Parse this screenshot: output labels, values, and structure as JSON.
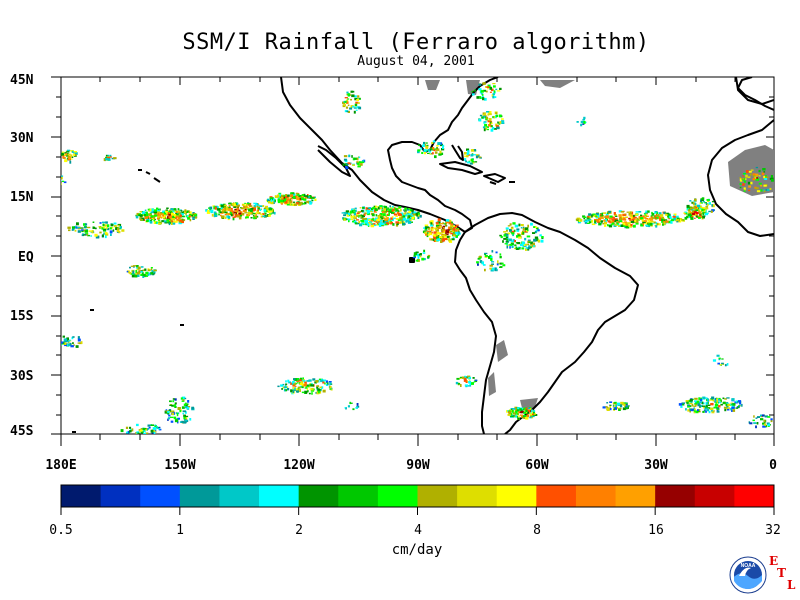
{
  "title": "SSM/I Rainfall (Ferraro algorithm)",
  "subtitle": "August 04, 2001",
  "lat_labels": [
    "45N",
    "30N",
    "15N",
    "EQ",
    "15S",
    "30S",
    "45S"
  ],
  "lon_labels": [
    "180E",
    "150W",
    "120W",
    "90W",
    "60W",
    "30W",
    "0"
  ],
  "colorbar": {
    "tick_labels": [
      "0.5",
      "1",
      "2",
      "4",
      "8",
      "16",
      "32"
    ],
    "units": "cm/day",
    "colors": [
      "#001a6e",
      "#0030c0",
      "#0050ff",
      "#009999",
      "#00c8c8",
      "#00ffff",
      "#009400",
      "#00c800",
      "#00ff00",
      "#b0b000",
      "#dede00",
      "#ffff00",
      "#ff5000",
      "#ff8000",
      "#ffa000",
      "#960000",
      "#c80000",
      "#ff0000"
    ],
    "land_no_data_color": "#808080"
  },
  "logos": {
    "noaa_text": "NOAA",
    "etl_letters": [
      "E",
      "T",
      "L"
    ]
  }
}
